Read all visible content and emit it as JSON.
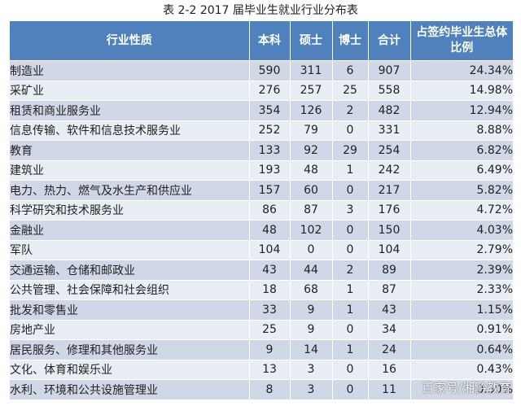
{
  "caption": "表 2-2   2017 届毕业生就业行业分布表",
  "table": {
    "headers": [
      "行业性质",
      "本科",
      "硕士",
      "博士",
      "合计",
      "占签约毕业生总体比例"
    ],
    "rows": [
      {
        "name": "制造业",
        "bachelor": "590",
        "master": "311",
        "doctor": "6",
        "total": "907",
        "ratio": "24.34%"
      },
      {
        "name": "采矿业",
        "bachelor": "276",
        "master": "257",
        "doctor": "25",
        "total": "558",
        "ratio": "14.98%"
      },
      {
        "name": "租赁和商业服务业",
        "bachelor": "354",
        "master": "126",
        "doctor": "2",
        "total": "482",
        "ratio": "12.94%"
      },
      {
        "name": "信息传输、软件和信息技术服务业",
        "bachelor": "252",
        "master": "79",
        "doctor": "0",
        "total": "331",
        "ratio": "8.88%"
      },
      {
        "name": "教育",
        "bachelor": "133",
        "master": "92",
        "doctor": "29",
        "total": "254",
        "ratio": "6.82%"
      },
      {
        "name": "建筑业",
        "bachelor": "193",
        "master": "48",
        "doctor": "1",
        "total": "242",
        "ratio": "6.49%"
      },
      {
        "name": "电力、热力、燃气及水生产和供应业",
        "bachelor": "157",
        "master": "60",
        "doctor": "0",
        "total": "217",
        "ratio": "5.82%"
      },
      {
        "name": "科学研究和技术服务业",
        "bachelor": "86",
        "master": "87",
        "doctor": "3",
        "total": "176",
        "ratio": "4.72%"
      },
      {
        "name": "金融业",
        "bachelor": "48",
        "master": "102",
        "doctor": "0",
        "total": "150",
        "ratio": "4.03%"
      },
      {
        "name": "军队",
        "bachelor": "104",
        "master": "0",
        "doctor": "0",
        "total": "104",
        "ratio": "2.79%"
      },
      {
        "name": "交通运输、仓储和邮政业",
        "bachelor": "43",
        "master": "44",
        "doctor": "2",
        "total": "89",
        "ratio": "2.39%"
      },
      {
        "name": "公共管理、社会保障和社会组织",
        "bachelor": "18",
        "master": "68",
        "doctor": "1",
        "total": "87",
        "ratio": "2.33%"
      },
      {
        "name": "批发和零售业",
        "bachelor": "33",
        "master": "9",
        "doctor": "1",
        "total": "43",
        "ratio": "1.15%"
      },
      {
        "name": "房地产业",
        "bachelor": "25",
        "master": "9",
        "doctor": "0",
        "total": "34",
        "ratio": "0.91%"
      },
      {
        "name": "居民服务、修理和其他服务业",
        "bachelor": "9",
        "master": "14",
        "doctor": "1",
        "total": "24",
        "ratio": "0.64%"
      },
      {
        "name": "文化、体育和娱乐业",
        "bachelor": "13",
        "master": "3",
        "doctor": "0",
        "total": "16",
        "ratio": "0.43%"
      },
      {
        "name": "水利、环境和公共设施管理业",
        "bachelor": "8",
        "master": "3",
        "doctor": "0",
        "total": "11",
        "ratio": "0.30%"
      }
    ]
  },
  "watermark": "百家号/湘黔教育",
  "colors": {
    "header_bg": "#4f81bd",
    "row_odd": "#d0d8e8",
    "row_even": "#e9edf4"
  }
}
